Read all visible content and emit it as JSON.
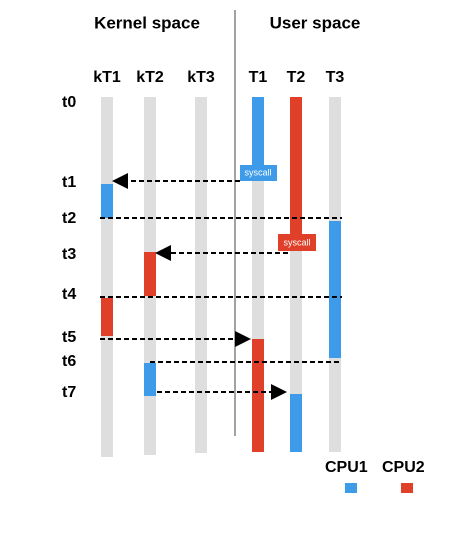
{
  "header": {
    "kernel": "Kernel space",
    "user": "User space"
  },
  "threads": [
    "kT1",
    "kT2",
    "kT3",
    "T1",
    "T2",
    "T3"
  ],
  "times": [
    "t0",
    "t1",
    "t2",
    "t3",
    "t4",
    "t5",
    "t6",
    "t7"
  ],
  "syscalls": [
    "syscall",
    "syscall"
  ],
  "legend": [
    "CPU1",
    "CPU2"
  ]
}
